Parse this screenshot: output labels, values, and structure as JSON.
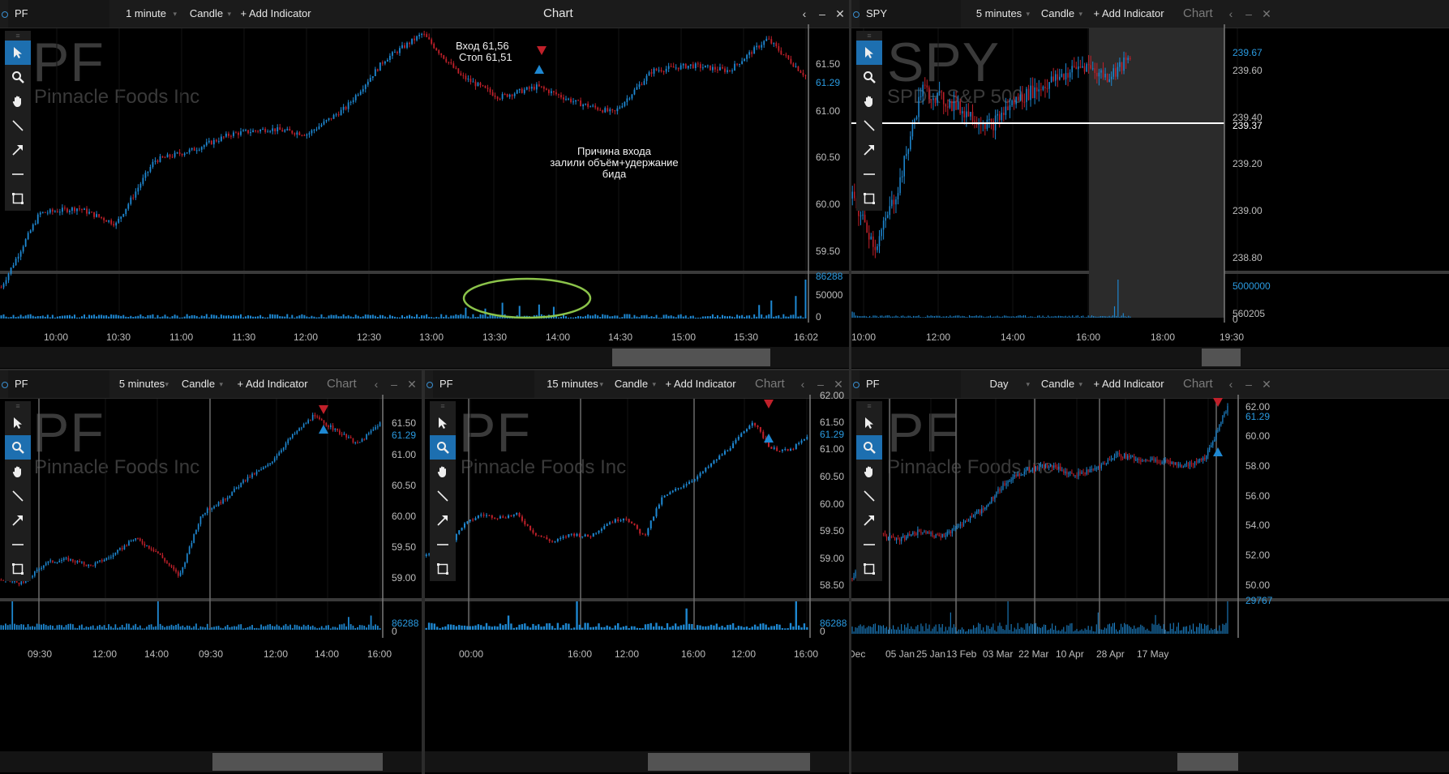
{
  "panels": {
    "top_left": {
      "symbol": "PF",
      "interval": "1 minute",
      "chart_type": "Candle",
      "add_indicator": "+ Add Indicator",
      "title": "Chart",
      "watermark_ticker": "PF",
      "watermark_name": "Pinnacle Foods Inc",
      "price_labels": [
        "61.50",
        "61.00",
        "60.50",
        "60.00",
        "59.50"
      ],
      "current_price": "61.29",
      "volume_labels": [
        "86288",
        "50000",
        "0"
      ],
      "time_labels": [
        "10:00",
        "10:30",
        "11:00",
        "11:30",
        "12:00",
        "12:30",
        "13:00",
        "13:30",
        "14:00",
        "14:30",
        "15:00",
        "15:30",
        "16:02"
      ],
      "annotation_entry": "Вход 61,56",
      "annotation_stop": "Стоп 61,51",
      "annotation_reason_1": "Причина входа",
      "annotation_reason_2": "залили объём+удержание",
      "annotation_reason_3": "бида"
    },
    "top_right": {
      "symbol": "SPY",
      "interval": "5 minutes",
      "chart_type": "Candle",
      "add_indicator": "+ Add Indicator",
      "title": "Chart",
      "watermark_ticker": "SPY",
      "watermark_name": "SPDR S&P 500",
      "price_labels": [
        "239.67",
        "239.60",
        "239.40",
        "239.37",
        "239.20",
        "239.00",
        "238.80"
      ],
      "volume_labels": [
        "5000000",
        "560205",
        "0"
      ],
      "time_labels": [
        "10:00",
        "12:00",
        "14:00",
        "16:00",
        "18:00",
        "19:30"
      ]
    },
    "bottom_left": {
      "symbol": "PF",
      "interval": "5 minutes",
      "chart_type": "Candle",
      "add_indicator": "+ Add Indicator",
      "title": "Chart",
      "watermark_ticker": "PF",
      "watermark_name": "Pinnacle Foods Inc",
      "price_labels": [
        "61.50",
        "61.29",
        "61.00",
        "60.50",
        "60.00",
        "59.50",
        "59.00"
      ],
      "volume_labels": [
        "86288",
        "0"
      ],
      "time_labels": [
        "09:30",
        "12:00",
        "14:00",
        "09:30",
        "12:00",
        "14:00",
        "16:00"
      ]
    },
    "bottom_mid": {
      "symbol": "PF",
      "interval": "15 minutes",
      "chart_type": "Candle",
      "add_indicator": "+ Add Indicator",
      "title": "Chart",
      "watermark_ticker": "PF",
      "watermark_name": "Pinnacle Foods Inc",
      "price_labels": [
        "62.00",
        "61.50",
        "61.29",
        "61.00",
        "60.50",
        "60.00",
        "59.50",
        "59.00",
        "58.50"
      ],
      "volume_labels": [
        "86288",
        "0"
      ],
      "time_labels": [
        "00:00",
        "16:00",
        "12:00",
        "16:00",
        "12:00",
        "16:00"
      ]
    },
    "bottom_right": {
      "symbol": "PF",
      "interval": "Day",
      "chart_type": "Candle",
      "add_indicator": "+ Add Indicator",
      "title": "Chart",
      "watermark_ticker": "PF",
      "watermark_name": "Pinnacle Foods Inc",
      "price_labels": [
        "62.00",
        "61.29",
        "60.00",
        "58.00",
        "56.00",
        "54.00",
        "52.00",
        "50.00"
      ],
      "volume_labels": [
        "29767"
      ],
      "time_labels": [
        "Dec",
        "05 Jan",
        "25 Jan",
        "13 Feb",
        "03 Mar",
        "22 Mar",
        "10 Apr",
        "28 Apr",
        "17 May"
      ]
    }
  },
  "tools": [
    "pointer-icon",
    "zoom-icon",
    "hand-icon",
    "line-icon",
    "arrow-icon",
    "hline-icon",
    "rect-icon"
  ],
  "colors": {
    "up": "#1e88d2",
    "down": "#c0202a",
    "accent": "#1d6fb0",
    "volume": "#1e88d2",
    "highlight": "#8bc34a"
  }
}
